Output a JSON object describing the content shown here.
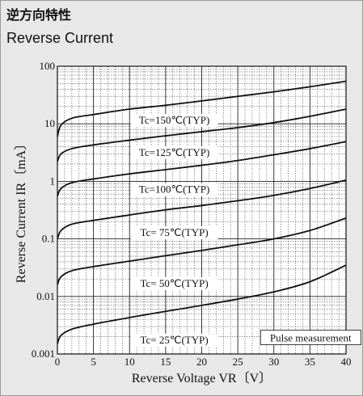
{
  "header": {
    "title_jp": "逆方向特性",
    "title_en": "Reverse Current"
  },
  "chart_data": {
    "type": "line",
    "title": "Reverse Current",
    "xlabel": "Reverse Voltage  VR〔V〕",
    "ylabel": "Reverse Current  IR〔mA〕",
    "xlim": [
      0,
      40
    ],
    "ylim": [
      0.001,
      100
    ],
    "yscale": "log",
    "grid": true,
    "x_ticks": [
      "0",
      "5",
      "10",
      "15",
      "20",
      "25",
      "30",
      "35",
      "40"
    ],
    "y_ticks": [
      "0.001",
      "0.01",
      "0.1",
      "1",
      "10",
      "100"
    ],
    "annotation": "Pulse measurement",
    "series": [
      {
        "name": "Tc=150℃(TYP)",
        "x": [
          0,
          0.5,
          2,
          5,
          10,
          15,
          20,
          25,
          30,
          35,
          40
        ],
        "y": [
          6,
          9.5,
          12.5,
          14.5,
          18,
          21,
          25,
          30,
          36,
          44,
          55
        ]
      },
      {
        "name": "Tc=125℃(TYP)",
        "x": [
          0,
          0.5,
          2,
          5,
          10,
          15,
          20,
          25,
          30,
          35,
          40
        ],
        "y": [
          2.2,
          3.0,
          3.7,
          4.3,
          5.2,
          6.2,
          7.3,
          8.6,
          10.5,
          13.5,
          18
        ]
      },
      {
        "name": "Tc=100℃(TYP)",
        "x": [
          0,
          0.5,
          2,
          5,
          10,
          15,
          20,
          25,
          30,
          35,
          40
        ],
        "y": [
          0.55,
          0.75,
          0.95,
          1.1,
          1.35,
          1.6,
          1.9,
          2.3,
          2.9,
          3.7,
          4.9
        ]
      },
      {
        "name": "Tc= 75℃(TYP)",
        "x": [
          0,
          0.5,
          2,
          5,
          10,
          15,
          20,
          25,
          30,
          35,
          40
        ],
        "y": [
          0.1,
          0.14,
          0.18,
          0.21,
          0.26,
          0.32,
          0.38,
          0.46,
          0.57,
          0.75,
          1.05
        ]
      },
      {
        "name": "Tc= 50℃(TYP)",
        "x": [
          0,
          0.5,
          2,
          5,
          10,
          15,
          20,
          25,
          30,
          35,
          40
        ],
        "y": [
          0.016,
          0.022,
          0.028,
          0.033,
          0.041,
          0.051,
          0.063,
          0.079,
          0.1,
          0.14,
          0.23
        ]
      },
      {
        "name": "Tc= 25℃(TYP)",
        "x": [
          0,
          0.5,
          2,
          5,
          10,
          15,
          20,
          25,
          30,
          35,
          40
        ],
        "y": [
          0.0015,
          0.0021,
          0.0027,
          0.0033,
          0.0043,
          0.0055,
          0.007,
          0.009,
          0.012,
          0.018,
          0.035
        ]
      }
    ]
  }
}
